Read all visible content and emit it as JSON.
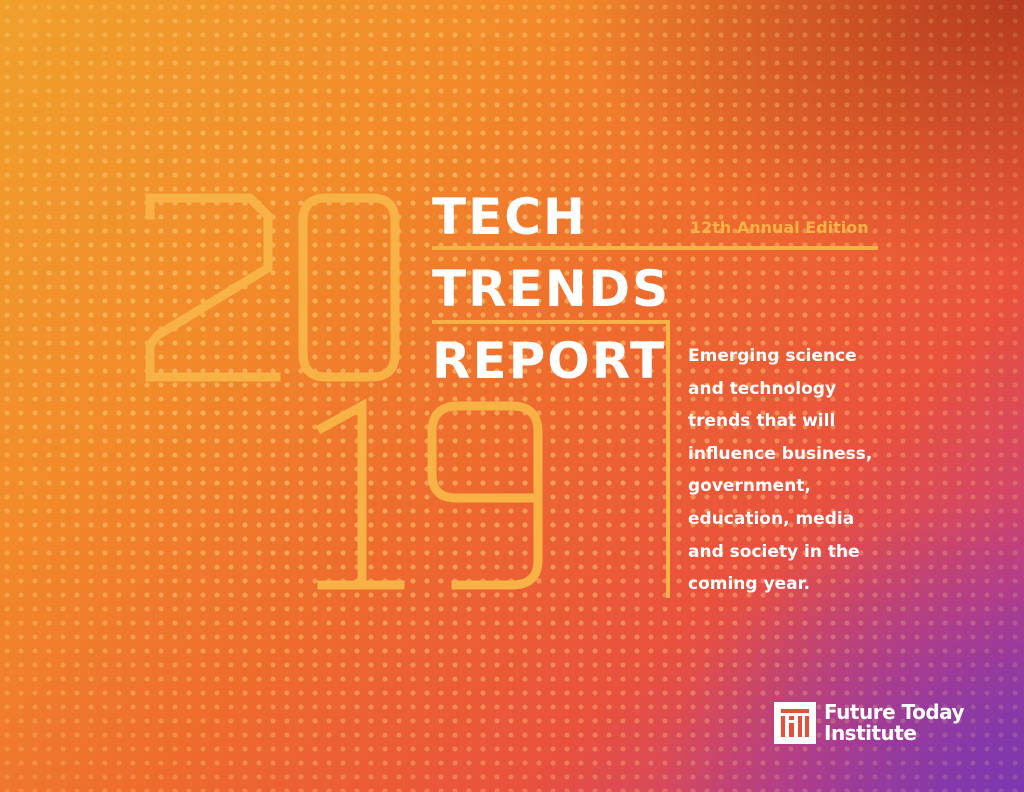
{
  "year": {
    "first_pair": "20",
    "second_pair": "19"
  },
  "title": {
    "line1": "TECH",
    "line2": "TRENDS",
    "line3": "REPORT"
  },
  "edition": "12th Annual Edition",
  "description_lines": [
    "Emerging science",
    "and technology",
    "trends that will",
    "influence business,",
    "government,",
    "education, media",
    "and society in the",
    "coming year."
  ],
  "publisher": {
    "line1": "Future Today",
    "line2": "Institute",
    "logo_icon": "fti-logo-icon"
  },
  "colors": {
    "accent": "#f7b144",
    "text": "#ffffff",
    "orange": "#ee6a2e",
    "purple": "#8a3aa8"
  }
}
